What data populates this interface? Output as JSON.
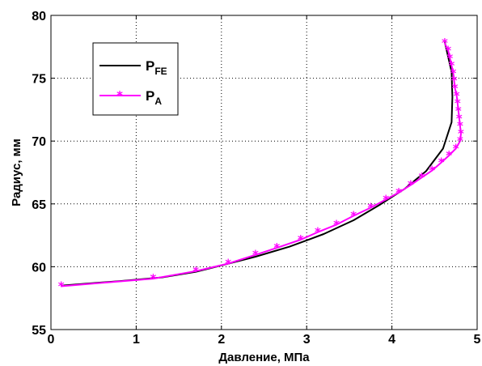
{
  "chart_data": {
    "type": "line",
    "xlabel": "Давление, МПа",
    "ylabel": "Радиус, мм",
    "xlim": [
      0,
      5
    ],
    "ylim": [
      55,
      80
    ],
    "xticks": [
      0,
      1,
      2,
      3,
      4,
      5
    ],
    "yticks": [
      55,
      60,
      65,
      70,
      75,
      80
    ],
    "grid": true,
    "legend_position": "top-left",
    "series": [
      {
        "name": "P",
        "name_sub": "FE",
        "color": "#000000",
        "marker": "none",
        "points": [
          [
            0.12,
            58.5
          ],
          [
            0.8,
            58.85
          ],
          [
            1.3,
            59.15
          ],
          [
            1.7,
            59.6
          ],
          [
            2.0,
            60.1
          ],
          [
            2.4,
            60.8
          ],
          [
            2.8,
            61.6
          ],
          [
            3.2,
            62.6
          ],
          [
            3.55,
            63.7
          ],
          [
            3.85,
            64.9
          ],
          [
            4.15,
            66.2
          ],
          [
            4.4,
            67.6
          ],
          [
            4.6,
            69.4
          ],
          [
            4.7,
            71.5
          ],
          [
            4.71,
            73.5
          ],
          [
            4.7,
            75.5
          ],
          [
            4.65,
            77.0
          ],
          [
            4.62,
            77.9
          ]
        ]
      },
      {
        "name": "P",
        "name_sub": "A",
        "color": "#ff00ff",
        "marker": "star",
        "points": [
          [
            0.12,
            58.45
          ],
          [
            1.2,
            59.05
          ],
          [
            1.7,
            59.65
          ],
          [
            2.08,
            60.25
          ],
          [
            2.4,
            60.95
          ],
          [
            2.65,
            61.5
          ],
          [
            2.93,
            62.15
          ],
          [
            3.13,
            62.75
          ],
          [
            3.35,
            63.35
          ],
          [
            3.55,
            64.05
          ],
          [
            3.75,
            64.7
          ],
          [
            3.93,
            65.35
          ],
          [
            4.08,
            65.9
          ],
          [
            4.22,
            66.5
          ],
          [
            4.35,
            67.1
          ],
          [
            4.47,
            67.65
          ],
          [
            4.58,
            68.3
          ],
          [
            4.67,
            68.85
          ],
          [
            4.75,
            69.4
          ],
          [
            4.8,
            70.0
          ],
          [
            4.81,
            70.6
          ],
          [
            4.8,
            71.2
          ],
          [
            4.79,
            71.8
          ],
          [
            4.78,
            72.4
          ],
          [
            4.77,
            73.0
          ],
          [
            4.76,
            73.6
          ],
          [
            4.74,
            74.2
          ],
          [
            4.73,
            74.8
          ],
          [
            4.72,
            75.4
          ],
          [
            4.7,
            76.0
          ],
          [
            4.68,
            76.6
          ],
          [
            4.66,
            77.2
          ],
          [
            4.62,
            77.8
          ]
        ]
      }
    ]
  }
}
